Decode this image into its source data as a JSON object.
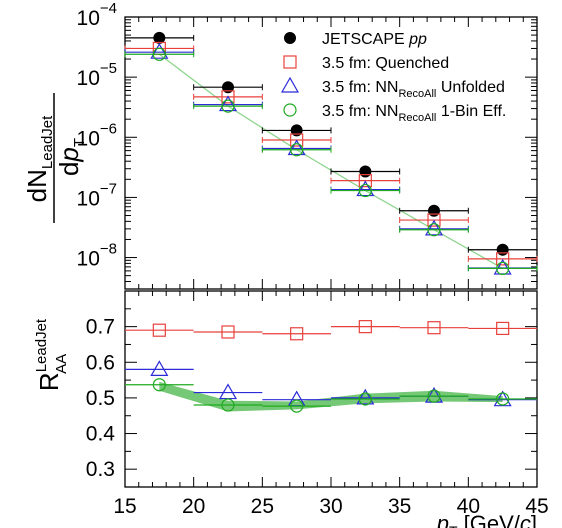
{
  "chart_data": [
    {
      "type": "scatter",
      "panel": "top",
      "yscale": "log",
      "xlim": [
        15,
        45
      ],
      "ylim": [
        3e-09,
        0.0001
      ],
      "x": [
        17.5,
        22.5,
        27.5,
        32.5,
        37.5,
        42.5
      ],
      "x_errors": [
        2.5,
        2.5,
        2.5,
        2.5,
        2.5,
        2.5
      ],
      "ytick_labels": [
        {
          "value": 0.0001,
          "base": "10",
          "exp": "−4"
        },
        {
          "value": 1e-05,
          "base": "10",
          "exp": "−5"
        },
        {
          "value": 1e-06,
          "base": "10",
          "exp": "−6"
        },
        {
          "value": 1e-07,
          "base": "10",
          "exp": "−7"
        },
        {
          "value": 1e-08,
          "base": "10",
          "exp": "−8"
        }
      ],
      "ylabel": {
        "num_main": "dN",
        "num_sub": "LeadJet",
        "den_main": "dp",
        "den_sub": "T"
      },
      "series": [
        {
          "name_main": "JETSCAPE ",
          "name_italic": "pp",
          "name_sub": "",
          "name_tail": "",
          "marker": "filled-circle",
          "color": "#000000",
          "values": [
            4.5e-05,
            6.8e-06,
            1.3e-06,
            2.7e-07,
            6e-08,
            1.35e-08
          ]
        },
        {
          "name_main": "3.5 fm: Quenched",
          "name_italic": "",
          "name_sub": "",
          "name_tail": "",
          "marker": "open-square",
          "color": "#e8413c",
          "values": [
            3e-05,
            4.7e-06,
            9e-07,
            1.9e-07,
            4.2e-08,
            9.5e-09
          ]
        },
        {
          "name_main": "3.5 fm: NN",
          "name_italic": "",
          "name_sub": "RecoAll",
          "name_tail": " Unfolded",
          "marker": "open-triangle",
          "color": "#2b2bd8",
          "values": [
            2.6e-05,
            3.5e-06,
            6.5e-07,
            1.35e-07,
            3e-08,
            6.7e-09
          ]
        },
        {
          "name_main": "3.5 fm: NN",
          "name_italic": "",
          "name_sub": "RecoAll",
          "name_tail": " 1-Bin Eff.",
          "marker": "open-circle",
          "color": "#1faa1f",
          "values": [
            2.4e-05,
            3.3e-06,
            6.2e-07,
            1.3e-07,
            2.9e-08,
            6.6e-09
          ]
        }
      ],
      "fit_curve": {
        "x": [
          17.5,
          22.5,
          27.5,
          32.5,
          37.5,
          42.5
        ],
        "y": [
          2.4e-05,
          3.3e-06,
          6.2e-07,
          1.3e-07,
          2.9e-08,
          6.6e-09
        ],
        "color": "#8fd68f"
      }
    },
    {
      "type": "scatter",
      "panel": "bottom",
      "xlim": [
        15,
        45
      ],
      "ylim": [
        0.25,
        0.8
      ],
      "x": [
        17.5,
        22.5,
        27.5,
        32.5,
        37.5,
        42.5
      ],
      "x_errors": [
        2.5,
        2.5,
        2.5,
        2.5,
        2.5,
        2.5
      ],
      "xticks": [
        "15",
        "20",
        "25",
        "30",
        "35",
        "40",
        "45"
      ],
      "yticks": [
        "0.3",
        "0.4",
        "0.5",
        "0.6",
        "0.7"
      ],
      "ylabel": {
        "main": "R",
        "sup": "LeadJet",
        "sub": "AA"
      },
      "xlabel": {
        "italic": "p",
        "sub": "T",
        "units_pre": " [GeV/",
        "units_italic": "c",
        "units_post": "]"
      },
      "series": [
        {
          "name": "3.5 fm: Quenched",
          "marker": "open-square",
          "color": "#e8413c",
          "values": [
            0.69,
            0.685,
            0.68,
            0.7,
            0.697,
            0.695
          ]
        },
        {
          "name": "3.5 fm: NN RecoAll Unfolded",
          "marker": "open-triangle",
          "color": "#2b2bd8",
          "values": [
            0.58,
            0.515,
            0.495,
            0.5,
            0.505,
            0.495
          ]
        },
        {
          "name": "3.5 fm: NN RecoAll 1-Bin Eff.",
          "marker": "open-circle",
          "color": "#1faa1f",
          "values": [
            0.537,
            0.48,
            0.477,
            0.497,
            0.505,
            0.497
          ],
          "band_low": [
            0.52,
            0.462,
            0.468,
            0.485,
            0.49,
            0.488
          ],
          "band_high": [
            0.545,
            0.492,
            0.49,
            0.512,
            0.52,
            0.505
          ]
        }
      ]
    }
  ]
}
